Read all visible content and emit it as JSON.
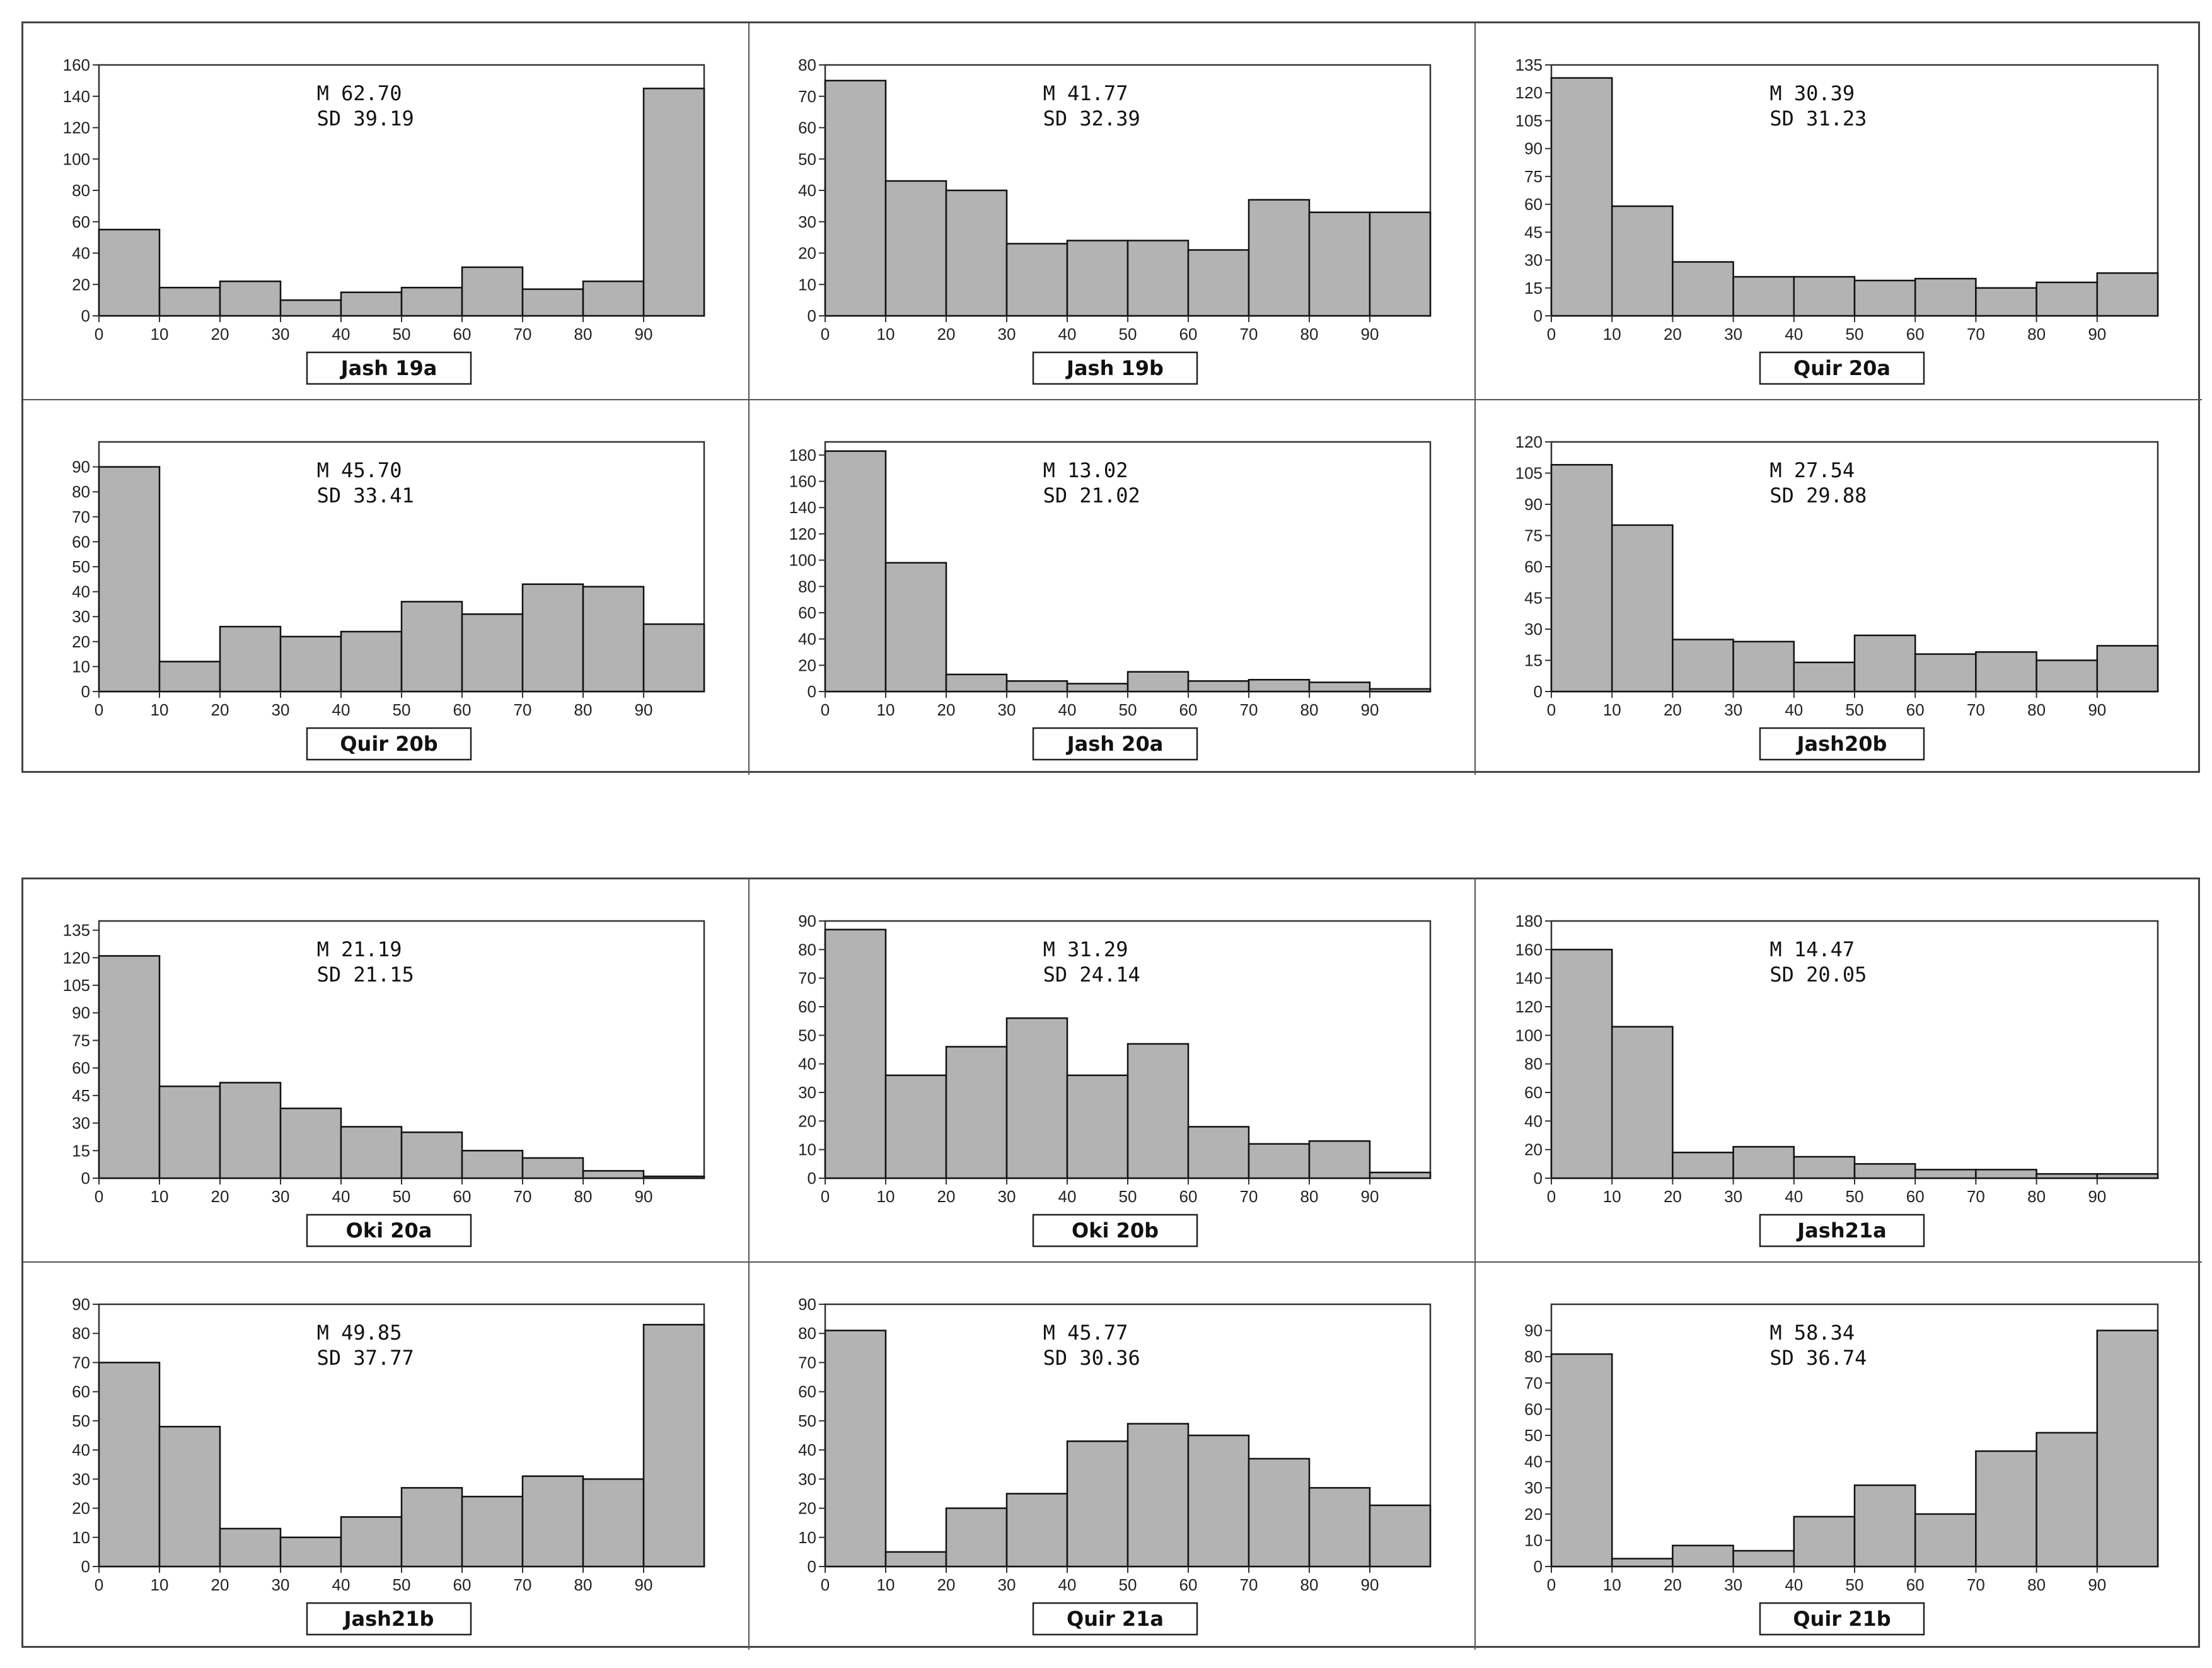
{
  "colors": {
    "bar_fill": "#b3b3b3",
    "bar_stroke": "#111111",
    "frame": "#333333"
  },
  "chart_data": [
    {
      "type": "bar",
      "title": "Jash 19a",
      "mean": "M   62.70",
      "sd": "SD  39.19",
      "ylim": [
        0,
        160
      ],
      "yticks": [
        "0",
        "20",
        "40",
        "60",
        "80",
        "100",
        "120",
        "140",
        "160"
      ],
      "xlim": [
        0,
        100
      ],
      "xticks": [
        "0",
        "10",
        "20",
        "30",
        "40",
        "50",
        "60",
        "70",
        "80",
        "90"
      ],
      "bin_width": 10,
      "values": [
        55,
        18,
        22,
        10,
        15,
        18,
        31,
        17,
        22,
        145
      ]
    },
    {
      "type": "bar",
      "title": "Jash 19b",
      "mean": "M   41.77",
      "sd": "SD  32.39",
      "ylim": [
        0,
        80
      ],
      "yticks": [
        "0",
        "10",
        "20",
        "30",
        "40",
        "50",
        "60",
        "70",
        "80"
      ],
      "xlim": [
        0,
        100
      ],
      "xticks": [
        "0",
        "10",
        "20",
        "30",
        "40",
        "50",
        "60",
        "70",
        "80",
        "90"
      ],
      "bin_width": 10,
      "values": [
        75,
        43,
        40,
        23,
        24,
        24,
        21,
        37,
        33,
        33
      ]
    },
    {
      "type": "bar",
      "title": "Quir 20a",
      "mean": "M   30.39",
      "sd": "SD  31.23",
      "ylim": [
        0,
        135
      ],
      "yticks": [
        "0",
        "15",
        "30",
        "45",
        "60",
        "75",
        "90",
        "105",
        "120",
        "135"
      ],
      "xlim": [
        0,
        100
      ],
      "xticks": [
        "0",
        "10",
        "20",
        "30",
        "40",
        "50",
        "60",
        "70",
        "80",
        "90"
      ],
      "bin_width": 10,
      "values": [
        128,
        59,
        29,
        21,
        21,
        19,
        20,
        15,
        18,
        23
      ]
    },
    {
      "type": "bar",
      "title": "Quir 20b",
      "mean": "M  45.70",
      "sd": "SD  33.41",
      "ylim": [
        0,
        100
      ],
      "yticks": [
        "0",
        "10",
        "20",
        "30",
        "40",
        "50",
        "60",
        "70",
        "80",
        "90"
      ],
      "xlim": [
        0,
        100
      ],
      "xticks": [
        "0",
        "10",
        "20",
        "30",
        "40",
        "50",
        "60",
        "70",
        "80",
        "90"
      ],
      "bin_width": 10,
      "values": [
        90,
        12,
        26,
        22,
        24,
        36,
        31,
        43,
        42,
        27
      ]
    },
    {
      "type": "bar",
      "title": "Jash 20a",
      "mean": "M  13.02",
      "sd": "SD  21.02",
      "ylim": [
        0,
        190
      ],
      "yticks": [
        "0",
        "20",
        "40",
        "60",
        "80",
        "100",
        "120",
        "140",
        "160",
        "180"
      ],
      "xlim": [
        0,
        100
      ],
      "xticks": [
        "0",
        "10",
        "20",
        "30",
        "40",
        "50",
        "60",
        "70",
        "80",
        "90"
      ],
      "bin_width": 10,
      "values": [
        183,
        98,
        13,
        8,
        6,
        15,
        8,
        9,
        7,
        2
      ]
    },
    {
      "type": "bar",
      "title": "Jash20b",
      "mean": "M  27.54",
      "sd": "SD  29.88",
      "ylim": [
        0,
        120
      ],
      "yticks": [
        "0",
        "15",
        "30",
        "45",
        "60",
        "75",
        "90",
        "105",
        "120"
      ],
      "xlim": [
        0,
        100
      ],
      "xticks": [
        "0",
        "10",
        "20",
        "30",
        "40",
        "50",
        "60",
        "70",
        "80",
        "90"
      ],
      "bin_width": 10,
      "values": [
        109,
        80,
        25,
        24,
        14,
        27,
        18,
        19,
        15,
        22
      ]
    },
    {
      "type": "bar",
      "title": "Oki 20a",
      "mean": "M 21.19",
      "sd": "SD  21.15",
      "ylim": [
        0,
        140
      ],
      "yticks": [
        "0",
        "15",
        "30",
        "45",
        "60",
        "75",
        "90",
        "105",
        "120",
        "135"
      ],
      "xlim": [
        0,
        100
      ],
      "xticks": [
        "0",
        "10",
        "20",
        "30",
        "40",
        "50",
        "60",
        "70",
        "80",
        "90"
      ],
      "bin_width": 10,
      "values": [
        121,
        50,
        52,
        38,
        28,
        25,
        15,
        11,
        4,
        1
      ]
    },
    {
      "type": "bar",
      "title": "Oki 20b",
      "mean": "M  31.29",
      "sd": "SD  24.14",
      "ylim": [
        0,
        90
      ],
      "yticks": [
        "0",
        "10",
        "20",
        "30",
        "40",
        "50",
        "60",
        "70",
        "80",
        "90"
      ],
      "xlim": [
        0,
        100
      ],
      "xticks": [
        "0",
        "10",
        "20",
        "30",
        "40",
        "50",
        "60",
        "70",
        "80",
        "90"
      ],
      "bin_width": 10,
      "values": [
        87,
        36,
        46,
        56,
        36,
        47,
        18,
        12,
        13,
        2
      ]
    },
    {
      "type": "bar",
      "title": "Jash21a",
      "mean": "M 14.47",
      "sd": "SD 20.05",
      "ylim": [
        0,
        180
      ],
      "yticks": [
        "0",
        "20",
        "40",
        "60",
        "80",
        "100",
        "120",
        "140",
        "160",
        "180"
      ],
      "xlim": [
        0,
        100
      ],
      "xticks": [
        "0",
        "10",
        "20",
        "30",
        "40",
        "50",
        "60",
        "70",
        "80",
        "90"
      ],
      "bin_width": 10,
      "values": [
        160,
        106,
        18,
        22,
        15,
        10,
        6,
        6,
        3,
        3
      ]
    },
    {
      "type": "bar",
      "title": "Jash21b",
      "mean": "M  49.85",
      "sd": "SD 37.77",
      "ylim": [
        0,
        90
      ],
      "yticks": [
        "0",
        "10",
        "20",
        "30",
        "40",
        "50",
        "60",
        "70",
        "80",
        "90"
      ],
      "xlim": [
        0,
        100
      ],
      "xticks": [
        "0",
        "10",
        "20",
        "30",
        "40",
        "50",
        "60",
        "70",
        "80",
        "90"
      ],
      "bin_width": 10,
      "values": [
        70,
        48,
        13,
        10,
        17,
        27,
        24,
        31,
        30,
        83
      ]
    },
    {
      "type": "bar",
      "title": "Quir 21a",
      "mean": "M  45.77",
      "sd": "SD 30.36",
      "ylim": [
        0,
        90
      ],
      "yticks": [
        "0",
        "10",
        "20",
        "30",
        "40",
        "50",
        "60",
        "70",
        "80",
        "90"
      ],
      "xlim": [
        0,
        100
      ],
      "xticks": [
        "0",
        "10",
        "20",
        "30",
        "40",
        "50",
        "60",
        "70",
        "80",
        "90"
      ],
      "bin_width": 10,
      "values": [
        81,
        5,
        20,
        25,
        43,
        49,
        45,
        37,
        27,
        21
      ]
    },
    {
      "type": "bar",
      "title": "Quir 21b",
      "mean": "M  58.34",
      "sd": "SD  36.74",
      "ylim": [
        0,
        100
      ],
      "yticks": [
        "0",
        "10",
        "20",
        "30",
        "40",
        "50",
        "60",
        "70",
        "80",
        "90"
      ],
      "xlim": [
        0,
        100
      ],
      "xticks": [
        "0",
        "10",
        "20",
        "30",
        "40",
        "50",
        "60",
        "70",
        "80",
        "90"
      ],
      "bin_width": 10,
      "values": [
        81,
        3,
        8,
        6,
        19,
        31,
        20,
        44,
        51,
        90
      ]
    }
  ]
}
